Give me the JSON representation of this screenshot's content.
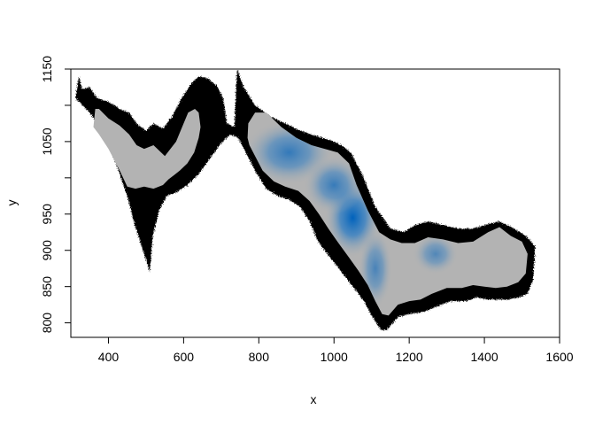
{
  "chart_data": {
    "type": "heatmap",
    "title": "",
    "xlabel": "x",
    "ylabel": "y",
    "xlim": [
      300,
      1600
    ],
    "ylim": [
      780,
      1150
    ],
    "x_ticks": [
      400,
      600,
      800,
      1000,
      1200,
      1400,
      1600
    ],
    "y_ticks": [
      800,
      850,
      900,
      950,
      1050,
      1150
    ],
    "grid": false,
    "legend": "none",
    "colors": {
      "background": "#ffffff",
      "boundary": "#000000",
      "low": "#b3b3b3",
      "high": "#0062bc"
    },
    "boundary_outline": [
      [
        312,
        1110
      ],
      [
        322,
        1140
      ],
      [
        330,
        1122
      ],
      [
        350,
        1125
      ],
      [
        370,
        1110
      ],
      [
        400,
        1105
      ],
      [
        430,
        1095
      ],
      [
        455,
        1090
      ],
      [
        475,
        1075
      ],
      [
        500,
        1065
      ],
      [
        520,
        1075
      ],
      [
        545,
        1068
      ],
      [
        570,
        1085
      ],
      [
        595,
        1110
      ],
      [
        620,
        1130
      ],
      [
        640,
        1140
      ],
      [
        665,
        1137
      ],
      [
        690,
        1126
      ],
      [
        705,
        1110
      ],
      [
        715,
        1075
      ],
      [
        735,
        1070
      ],
      [
        742,
        1150
      ],
      [
        760,
        1125
      ],
      [
        790,
        1100
      ],
      [
        830,
        1085
      ],
      [
        870,
        1075
      ],
      [
        910,
        1065
      ],
      [
        950,
        1058
      ],
      [
        990,
        1052
      ],
      [
        1020,
        1045
      ],
      [
        1045,
        1035
      ],
      [
        1075,
        1005
      ],
      [
        1110,
        960
      ],
      [
        1150,
        930
      ],
      [
        1185,
        925
      ],
      [
        1215,
        935
      ],
      [
        1250,
        940
      ],
      [
        1290,
        935
      ],
      [
        1330,
        930
      ],
      [
        1370,
        930
      ],
      [
        1400,
        935
      ],
      [
        1440,
        940
      ],
      [
        1480,
        930
      ],
      [
        1515,
        918
      ],
      [
        1535,
        905
      ],
      [
        1530,
        860
      ],
      [
        1515,
        840
      ],
      [
        1490,
        835
      ],
      [
        1460,
        832
      ],
      [
        1430,
        832
      ],
      [
        1410,
        832
      ],
      [
        1380,
        835
      ],
      [
        1350,
        830
      ],
      [
        1310,
        830
      ],
      [
        1270,
        822
      ],
      [
        1240,
        815
      ],
      [
        1200,
        812
      ],
      [
        1170,
        808
      ],
      [
        1140,
        790
      ],
      [
        1125,
        790
      ],
      [
        1100,
        810
      ],
      [
        1080,
        830
      ],
      [
        1050,
        850
      ],
      [
        1020,
        870
      ],
      [
        990,
        890
      ],
      [
        960,
        910
      ],
      [
        935,
        940
      ],
      [
        910,
        960
      ],
      [
        880,
        970
      ],
      [
        850,
        975
      ],
      [
        820,
        985
      ],
      [
        795,
        1005
      ],
      [
        770,
        1030
      ],
      [
        745,
        1055
      ],
      [
        725,
        1060
      ],
      [
        700,
        1048
      ],
      [
        672,
        1028
      ],
      [
        640,
        1005
      ],
      [
        610,
        990
      ],
      [
        580,
        980
      ],
      [
        555,
        975
      ],
      [
        535,
        955
      ],
      [
        518,
        920
      ],
      [
        510,
        870
      ],
      [
        495,
        895
      ],
      [
        470,
        935
      ],
      [
        450,
        975
      ],
      [
        420,
        1020
      ],
      [
        390,
        1060
      ],
      [
        350,
        1090
      ]
    ],
    "interior_outline": [
      [
        360,
        1070
      ],
      [
        365,
        1095
      ],
      [
        375,
        1095
      ],
      [
        400,
        1082
      ],
      [
        430,
        1072
      ],
      [
        455,
        1060
      ],
      [
        475,
        1045
      ],
      [
        495,
        1040
      ],
      [
        520,
        1045
      ],
      [
        550,
        1030
      ],
      [
        580,
        1050
      ],
      [
        600,
        1075
      ],
      [
        612,
        1090
      ],
      [
        630,
        1095
      ],
      [
        640,
        1090
      ],
      [
        645,
        1070
      ],
      [
        640,
        1055
      ],
      [
        628,
        1035
      ],
      [
        610,
        1020
      ],
      [
        590,
        1010
      ],
      [
        575,
        1004
      ],
      [
        560,
        998
      ],
      [
        545,
        990
      ],
      [
        520,
        985
      ],
      [
        495,
        988
      ],
      [
        472,
        985
      ],
      [
        450,
        988
      ],
      [
        430,
        1010
      ],
      [
        400,
        1040
      ],
      [
        375,
        1060
      ],
      [
        360,
        1070
      ],
      [
        362,
        1065
      ],
      [
        770,
        1055
      ],
      [
        772,
        1075
      ],
      [
        790,
        1090
      ],
      [
        820,
        1090
      ],
      [
        860,
        1070
      ],
      [
        900,
        1055
      ],
      [
        940,
        1045
      ],
      [
        975,
        1040
      ],
      [
        1010,
        1035
      ],
      [
        1040,
        1020
      ],
      [
        1060,
        990
      ],
      [
        1090,
        955
      ],
      [
        1120,
        925
      ],
      [
        1150,
        915
      ],
      [
        1180,
        910
      ],
      [
        1215,
        910
      ],
      [
        1250,
        918
      ],
      [
        1290,
        915
      ],
      [
        1330,
        910
      ],
      [
        1370,
        912
      ],
      [
        1410,
        925
      ],
      [
        1440,
        932
      ],
      [
        1470,
        920
      ],
      [
        1500,
        912
      ],
      [
        1515,
        895
      ],
      [
        1510,
        868
      ],
      [
        1490,
        856
      ],
      [
        1460,
        850
      ],
      [
        1430,
        848
      ],
      [
        1400,
        850
      ],
      [
        1370,
        852
      ],
      [
        1340,
        848
      ],
      [
        1300,
        848
      ],
      [
        1260,
        840
      ],
      [
        1230,
        832
      ],
      [
        1200,
        830
      ],
      [
        1170,
        825
      ],
      [
        1145,
        810
      ],
      [
        1128,
        812
      ],
      [
        1110,
        830
      ],
      [
        1090,
        852
      ],
      [
        1065,
        872
      ],
      [
        1040,
        890
      ],
      [
        1012,
        910
      ],
      [
        985,
        930
      ],
      [
        960,
        950
      ],
      [
        935,
        968
      ],
      [
        905,
        982
      ],
      [
        870,
        988
      ],
      [
        840,
        995
      ],
      [
        810,
        1010
      ],
      [
        790,
        1030
      ],
      [
        775,
        1045
      ]
    ],
    "blue_peaks": [
      {
        "x": 1050,
        "y": 945,
        "intensity": 1.0,
        "rx": 75,
        "ry": 55
      },
      {
        "x": 880,
        "y": 1035,
        "intensity": 0.72,
        "rx": 120,
        "ry": 45
      },
      {
        "x": 1270,
        "y": 895,
        "intensity": 0.55,
        "rx": 60,
        "ry": 28
      },
      {
        "x": 1110,
        "y": 875,
        "intensity": 0.6,
        "rx": 45,
        "ry": 55
      },
      {
        "x": 1000,
        "y": 990,
        "intensity": 0.7,
        "rx": 80,
        "ry": 40
      }
    ]
  }
}
